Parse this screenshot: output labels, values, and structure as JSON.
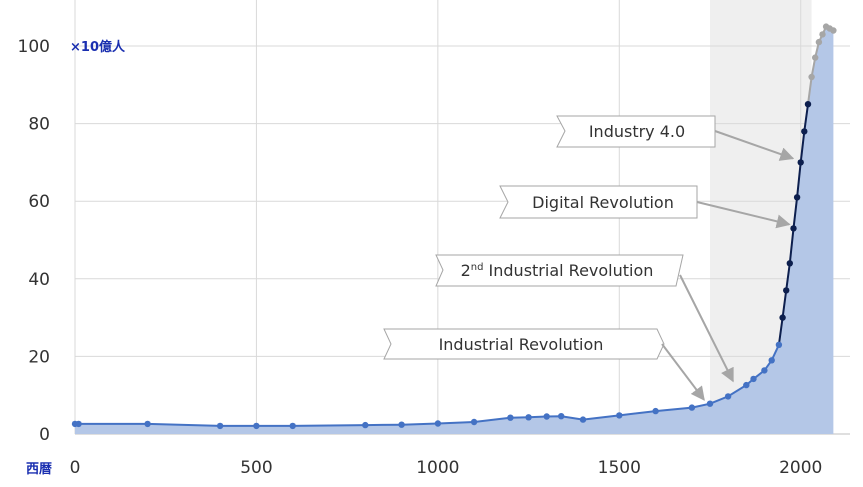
{
  "chart_data": {
    "type": "area",
    "ylabel": "×10億人",
    "xlabel": "西暦",
    "xlim": [
      0,
      2100
    ],
    "ylim": [
      0,
      100
    ],
    "x_ticks": [
      {
        "label": "0",
        "value": 0
      },
      {
        "label": "500",
        "value": 500
      },
      {
        "label": "1000",
        "value": 1000
      },
      {
        "label": "1500",
        "value": 1500
      },
      {
        "label": "2000",
        "value": 2000
      }
    ],
    "y_ticks": [
      {
        "label": "0",
        "value": 0
      },
      {
        "label": "20",
        "value": 20
      },
      {
        "label": "40",
        "value": 40
      },
      {
        "label": "60",
        "value": 60
      },
      {
        "label": "80",
        "value": 80
      },
      {
        "label": "100",
        "value": 100
      }
    ],
    "grid": true,
    "shaded_range": [
      1750,
      2030
    ],
    "colors": {
      "area_fill": "#b4c7e7",
      "line_early": "#4472c4",
      "line_modern": "#0d1f4e",
      "line_projection": "#a6a6a6",
      "shade": "#efefef",
      "arrow": "#a6a6a6",
      "unit_text": "#1a2fb0"
    },
    "series": [
      {
        "segment": "early",
        "points": [
          [
            0,
            2.6
          ],
          [
            10,
            2.6
          ],
          [
            200,
            2.6
          ],
          [
            400,
            2.1
          ],
          [
            500,
            2.1
          ],
          [
            600,
            2.1
          ],
          [
            800,
            2.3
          ],
          [
            900,
            2.4
          ],
          [
            1000,
            2.7
          ],
          [
            1100,
            3.1
          ],
          [
            1200,
            4.2
          ],
          [
            1250,
            4.3
          ],
          [
            1300,
            4.5
          ],
          [
            1340,
            4.6
          ],
          [
            1400,
            3.7
          ],
          [
            1500,
            4.8
          ],
          [
            1600,
            5.9
          ],
          [
            1700,
            6.8
          ],
          [
            1750,
            7.8
          ],
          [
            1800,
            9.7
          ],
          [
            1850,
            12.6
          ],
          [
            1870,
            14.2
          ],
          [
            1900,
            16.4
          ],
          [
            1920,
            19.0
          ],
          [
            1940,
            23.0
          ]
        ]
      },
      {
        "segment": "modern",
        "points": [
          [
            1950,
            30.0
          ],
          [
            1960,
            37.0
          ],
          [
            1970,
            44.0
          ],
          [
            1980,
            53.0
          ],
          [
            1990,
            61.0
          ],
          [
            2000,
            70.0
          ],
          [
            2010,
            78.0
          ],
          [
            2020,
            85.0
          ]
        ]
      },
      {
        "segment": "projection",
        "points": [
          [
            2030,
            92.0
          ],
          [
            2040,
            97.0
          ],
          [
            2050,
            101.0
          ],
          [
            2060,
            103.0
          ],
          [
            2070,
            105.0
          ],
          [
            2080,
            104.5
          ],
          [
            2090,
            104.0
          ]
        ]
      }
    ],
    "annotations": [
      {
        "text": "Industry 4.0",
        "target": [
          1995,
          70.0
        ]
      },
      {
        "text": "Digital Revolution",
        "target": [
          1985,
          53.0
        ]
      },
      {
        "text_before": "2",
        "text_sup": "nd",
        "text_after": " Industrial Revolution",
        "target": [
          1830,
          12.6
        ]
      },
      {
        "text": "Industrial Revolution",
        "target": [
          1750,
          7.8
        ]
      }
    ]
  }
}
